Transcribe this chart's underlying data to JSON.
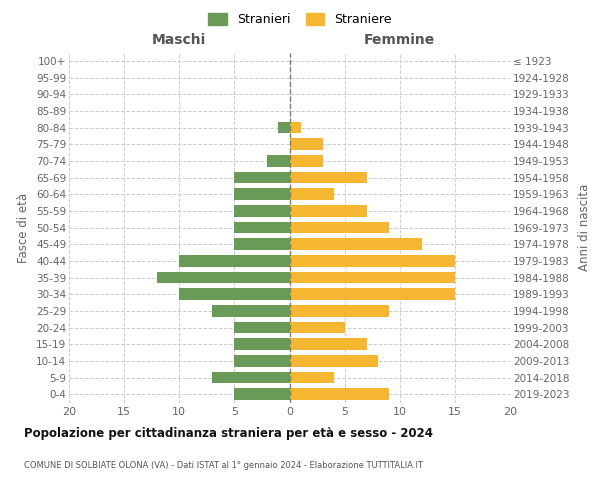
{
  "age_groups": [
    "0-4",
    "5-9",
    "10-14",
    "15-19",
    "20-24",
    "25-29",
    "30-34",
    "35-39",
    "40-44",
    "45-49",
    "50-54",
    "55-59",
    "60-64",
    "65-69",
    "70-74",
    "75-79",
    "80-84",
    "85-89",
    "90-94",
    "95-99",
    "100+"
  ],
  "birth_years": [
    "2019-2023",
    "2014-2018",
    "2009-2013",
    "2004-2008",
    "1999-2003",
    "1994-1998",
    "1989-1993",
    "1984-1988",
    "1979-1983",
    "1974-1978",
    "1969-1973",
    "1964-1968",
    "1959-1963",
    "1954-1958",
    "1949-1953",
    "1944-1948",
    "1939-1943",
    "1934-1938",
    "1929-1933",
    "1924-1928",
    "≤ 1923"
  ],
  "maschi": [
    5,
    7,
    5,
    5,
    5,
    7,
    10,
    12,
    10,
    5,
    5,
    5,
    5,
    5,
    2,
    0,
    1,
    0,
    0,
    0,
    0
  ],
  "femmine": [
    9,
    4,
    8,
    7,
    5,
    9,
    15,
    15,
    15,
    12,
    9,
    7,
    4,
    7,
    3,
    3,
    1,
    0,
    0,
    0,
    0
  ],
  "male_color": "#6a9a58",
  "female_color": "#f5b731",
  "bg_color": "#ffffff",
  "grid_color": "#cccccc",
  "center_line_color": "#808060",
  "title_main": "Popolazione per cittadinanza straniera per età e sesso - 2024",
  "title_sub": "COMUNE DI SOLBIATE OLONA (VA) - Dati ISTAT al 1° gennaio 2024 - Elaborazione TUTTITALIA.IT",
  "label_maschi": "Maschi",
  "label_femmine": "Femmine",
  "ylabel_left": "Fasce di età",
  "ylabel_right": "Anni di nascita",
  "legend_male": "Stranieri",
  "legend_female": "Straniere",
  "xlim": 20
}
